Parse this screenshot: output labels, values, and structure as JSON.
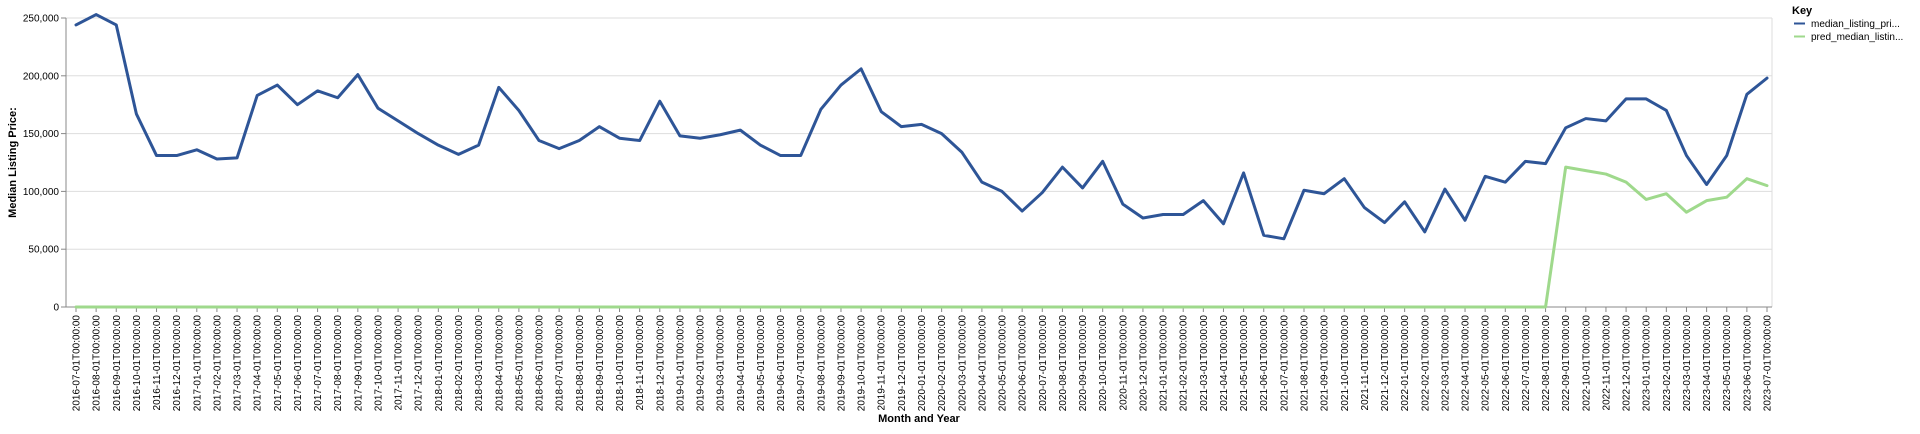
{
  "chart_data": {
    "type": "line",
    "xlabel": "Month and Year",
    "ylabel": "Median Listing Price:",
    "ylim": [
      0,
      250000
    ],
    "yticks": [
      0,
      50000,
      100000,
      150000,
      200000,
      250000
    ],
    "ytick_labels": [
      "0",
      "50,000",
      "100,000",
      "150,000",
      "200,000",
      "250,000"
    ],
    "grid": true,
    "legend": {
      "title": "Key",
      "placement": "top-right"
    },
    "categories": [
      "2016-07-01T00:00:00",
      "2016-08-01T00:00:00",
      "2016-09-01T00:00:00",
      "2016-10-01T00:00:00",
      "2016-11-01T00:00:00",
      "2016-12-01T00:00:00",
      "2017-01-01T00:00:00",
      "2017-02-01T00:00:00",
      "2017-03-01T00:00:00",
      "2017-04-01T00:00:00",
      "2017-05-01T00:00:00",
      "2017-06-01T00:00:00",
      "2017-07-01T00:00:00",
      "2017-08-01T00:00:00",
      "2017-09-01T00:00:00",
      "2017-10-01T00:00:00",
      "2017-11-01T00:00:00",
      "2017-12-01T00:00:00",
      "2018-01-01T00:00:00",
      "2018-02-01T00:00:00",
      "2018-03-01T00:00:00",
      "2018-04-01T00:00:00",
      "2018-05-01T00:00:00",
      "2018-06-01T00:00:00",
      "2018-07-01T00:00:00",
      "2018-08-01T00:00:00",
      "2018-09-01T00:00:00",
      "2018-10-01T00:00:00",
      "2018-11-01T00:00:00",
      "2018-12-01T00:00:00",
      "2019-01-01T00:00:00",
      "2019-02-01T00:00:00",
      "2019-03-01T00:00:00",
      "2019-04-01T00:00:00",
      "2019-05-01T00:00:00",
      "2019-06-01T00:00:00",
      "2019-07-01T00:00:00",
      "2019-08-01T00:00:00",
      "2019-09-01T00:00:00",
      "2019-10-01T00:00:00",
      "2019-11-01T00:00:00",
      "2019-12-01T00:00:00",
      "2020-01-01T00:00:00",
      "2020-02-01T00:00:00",
      "2020-03-01T00:00:00",
      "2020-04-01T00:00:00",
      "2020-05-01T00:00:00",
      "2020-06-01T00:00:00",
      "2020-07-01T00:00:00",
      "2020-08-01T00:00:00",
      "2020-09-01T00:00:00",
      "2020-10-01T00:00:00",
      "2020-11-01T00:00:00",
      "2020-12-01T00:00:00",
      "2021-01-01T00:00:00",
      "2021-02-01T00:00:00",
      "2021-03-01T00:00:00",
      "2021-04-01T00:00:00",
      "2021-05-01T00:00:00",
      "2021-06-01T00:00:00",
      "2021-07-01T00:00:00",
      "2021-08-01T00:00:00",
      "2021-09-01T00:00:00",
      "2021-10-01T00:00:00",
      "2021-11-01T00:00:00",
      "2021-12-01T00:00:00",
      "2022-01-01T00:00:00",
      "2022-02-01T00:00:00",
      "2022-03-01T00:00:00",
      "2022-04-01T00:00:00",
      "2022-05-01T00:00:00",
      "2022-06-01T00:00:00",
      "2022-07-01T00:00:00",
      "2022-08-01T00:00:00",
      "2022-09-01T00:00:00",
      "2022-10-01T00:00:00",
      "2022-11-01T00:00:00",
      "2022-12-01T00:00:00",
      "2023-01-01T00:00:00",
      "2023-02-01T00:00:00",
      "2023-03-01T00:00:00",
      "2023-04-01T00:00:00",
      "2023-05-01T00:00:00",
      "2023-06-01T00:00:00",
      "2023-07-01T00:00:00"
    ],
    "series": [
      {
        "name": "median_listing_pri...",
        "color": "#2e5597",
        "values": [
          244000,
          253000,
          244000,
          167000,
          131000,
          131000,
          136000,
          128000,
          129000,
          183000,
          192000,
          175000,
          187000,
          181000,
          201000,
          172000,
          161000,
          150000,
          140000,
          132000,
          140000,
          190000,
          170000,
          144000,
          137000,
          144000,
          156000,
          146000,
          144000,
          178000,
          148000,
          146000,
          149000,
          153000,
          140000,
          131000,
          131000,
          171000,
          192000,
          206000,
          169000,
          156000,
          158000,
          150000,
          134000,
          108000,
          100000,
          83000,
          99000,
          121000,
          103000,
          126000,
          89000,
          77000,
          80000,
          80000,
          92000,
          72000,
          116000,
          62000,
          59000,
          101000,
          98000,
          111000,
          86000,
          73000,
          91000,
          65000,
          102000,
          75000,
          113000,
          108000,
          126000,
          124000,
          155000,
          163000,
          161000,
          180000,
          180000,
          170000,
          131000,
          106000,
          131000,
          184000,
          198000
        ]
      },
      {
        "name": "pred_median_listin...",
        "color": "#9fd98c",
        "values": [
          0,
          0,
          0,
          0,
          0,
          0,
          0,
          0,
          0,
          0,
          0,
          0,
          0,
          0,
          0,
          0,
          0,
          0,
          0,
          0,
          0,
          0,
          0,
          0,
          0,
          0,
          0,
          0,
          0,
          0,
          0,
          0,
          0,
          0,
          0,
          0,
          0,
          0,
          0,
          0,
          0,
          0,
          0,
          0,
          0,
          0,
          0,
          0,
          0,
          0,
          0,
          0,
          0,
          0,
          0,
          0,
          0,
          0,
          0,
          0,
          0,
          0,
          0,
          0,
          0,
          0,
          0,
          0,
          0,
          0,
          0,
          0,
          0,
          0,
          121000,
          118000,
          115000,
          108000,
          93000,
          98000,
          82000,
          92000,
          95000,
          111000,
          105000
        ]
      }
    ]
  }
}
